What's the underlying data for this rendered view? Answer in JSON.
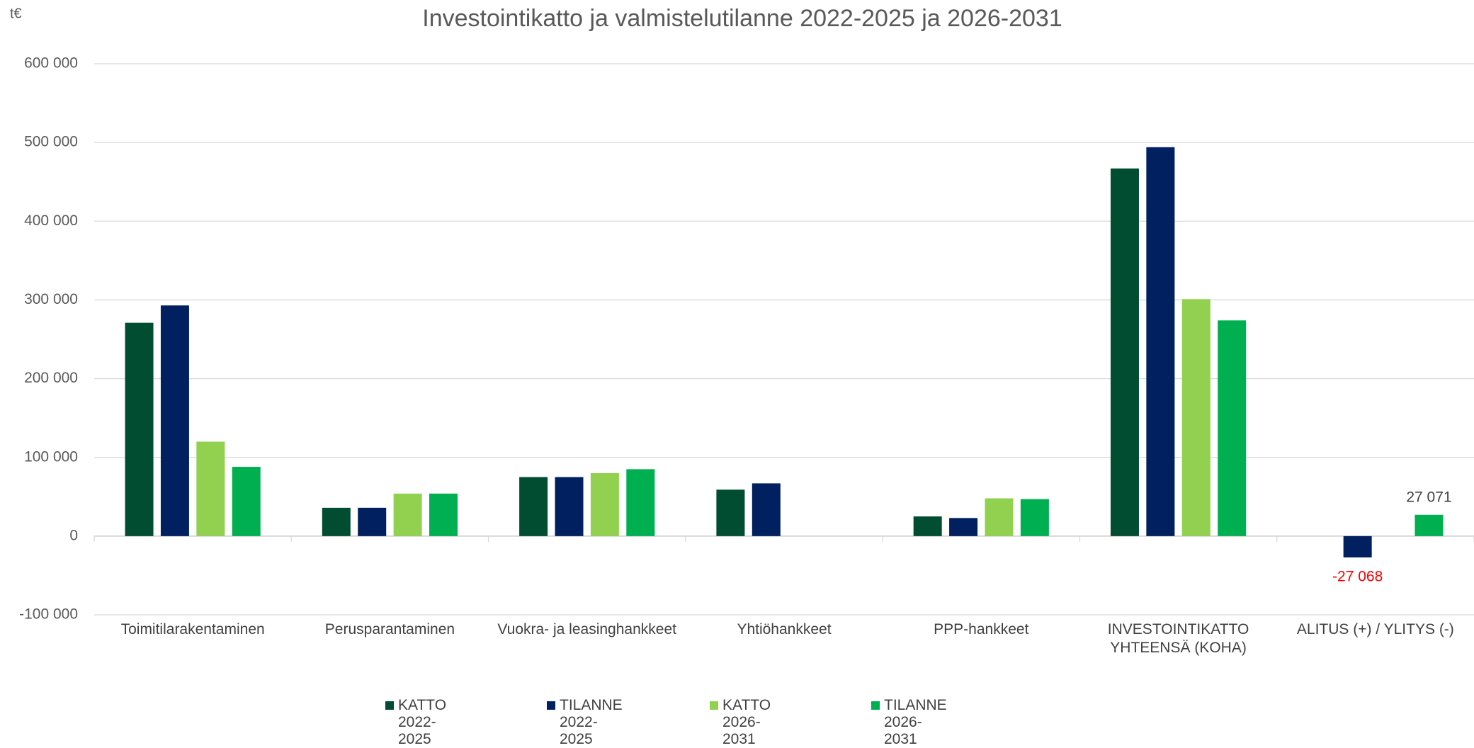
{
  "chart_data": {
    "type": "bar",
    "title": "Investointikatto ja valmistelutilanne 2022-2025 ja 2026-2031",
    "y_label": "t€",
    "categories": [
      "Toimitilarakentaminen",
      "Perusparantaminen",
      "Vuokra- ja leasinghankkeet",
      "Yhtiöhankkeet",
      "PPP-hankkeet",
      "INVESTOINTIKATTO YHTEENSÄ (KOHA)",
      "ALITUS (+) / YLITYS (-)"
    ],
    "series": [
      {
        "name": "KATTO 2022-2025",
        "color": "#004d31",
        "values": [
          271000,
          36000,
          75000,
          59000,
          25000,
          467000,
          null
        ]
      },
      {
        "name": "TILANNE 2022-2025",
        "color": "#002060",
        "values": [
          293000,
          36000,
          75000,
          67000,
          23000,
          494000,
          -27068
        ],
        "value_labels": [
          null,
          null,
          null,
          null,
          null,
          null,
          "-27 068"
        ]
      },
      {
        "name": "KATTO 2026-2031",
        "color": "#92d050",
        "values": [
          120000,
          54000,
          80000,
          null,
          48000,
          301000,
          null
        ]
      },
      {
        "name": "TILANNE 2026-2031",
        "color": "#00b050",
        "values": [
          88000,
          54000,
          85000,
          null,
          47000,
          274000,
          27071
        ],
        "value_labels": [
          null,
          null,
          null,
          null,
          null,
          null,
          "27 071"
        ]
      }
    ],
    "negative_label_color": "#ff0000",
    "ylim": [
      -100000,
      600000
    ],
    "yticks": [
      {
        "value": -100000,
        "label": "-100 000"
      },
      0,
      {
        "value": 100000,
        "label": "100 000"
      },
      {
        "value": 200000,
        "label": "200 000"
      },
      {
        "value": 300000,
        "label": "300 000"
      },
      {
        "value": 400000,
        "label": "400 000"
      },
      {
        "value": 500000,
        "label": "500 000"
      },
      {
        "value": 600000,
        "label": "600 000"
      }
    ],
    "grid": true,
    "legend": "bottom"
  }
}
